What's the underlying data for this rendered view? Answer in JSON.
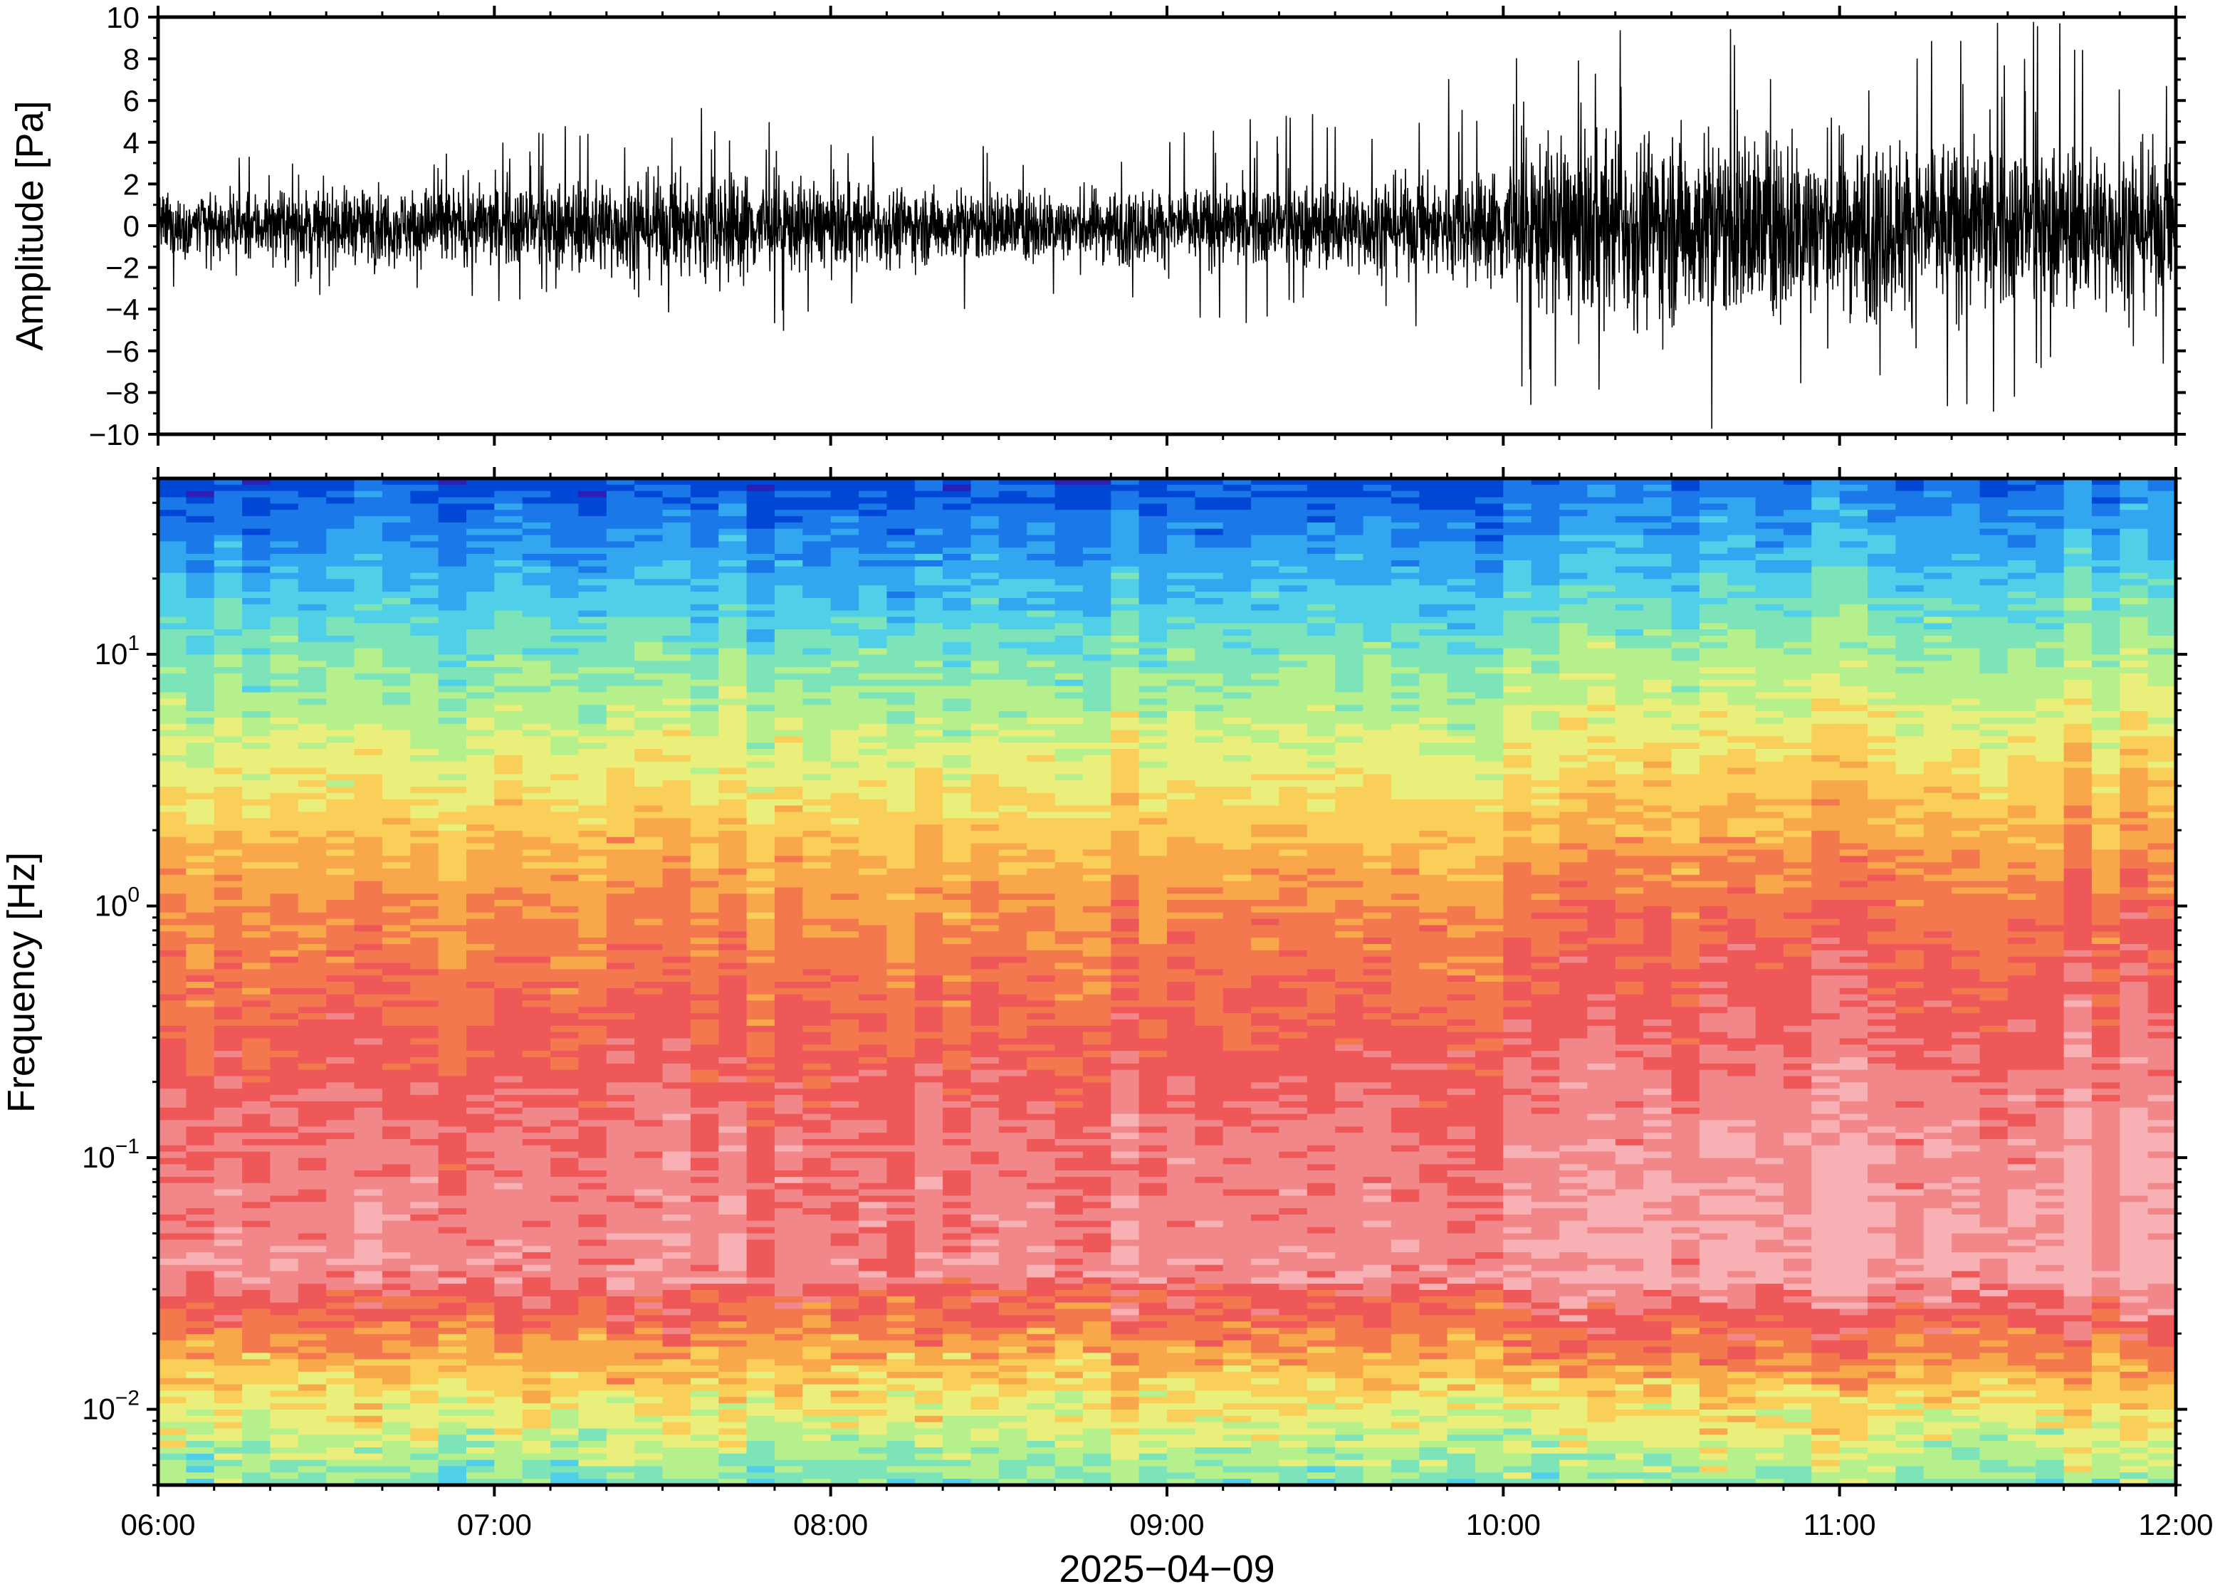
{
  "chart_data": [
    {
      "type": "line",
      "panel": "waveform",
      "ylabel": "Amplitude [Pa]",
      "ylim": [
        -10,
        10
      ],
      "yticks": [
        -10,
        -8,
        -6,
        -4,
        -2,
        0,
        2,
        4,
        6,
        8,
        10
      ],
      "ytick_labels": [
        "−10",
        "−8",
        "−6",
        "−4",
        "−2",
        "0",
        "2",
        "4",
        "6",
        "8",
        "10"
      ],
      "x_range": [
        "06:00",
        "12:00"
      ],
      "envelope": {
        "x_hours": [
          6.0,
          6.5,
          7.0,
          7.5,
          7.67,
          8.0,
          8.5,
          9.0,
          9.5,
          9.83,
          9.99,
          10.0,
          10.5,
          11.0,
          11.5,
          12.0
        ],
        "typical": [
          1.2,
          1.4,
          1.6,
          2.0,
          2.2,
          1.6,
          1.4,
          1.5,
          1.7,
          2.0,
          2.2,
          3.2,
          3.8,
          3.6,
          3.3,
          3.0
        ],
        "peak": [
          3.2,
          3.5,
          4.0,
          6.0,
          6.0,
          4.5,
          4.0,
          5.0,
          5.5,
          7.5,
          7.0,
          8.5,
          10.0,
          10.0,
          10.0,
          9.5
        ]
      },
      "grid": false,
      "color": "#000000"
    },
    {
      "type": "heatmap",
      "panel": "spectrogram",
      "xlabel": "2025−04−09",
      "ylabel": "Frequency [Hz]",
      "yscale": "log",
      "ylim": [
        0.005,
        50
      ],
      "yticks": [
        0.01,
        0.1,
        1,
        10
      ],
      "ytick_labels": [
        {
          "base": "10",
          "exp": "−2"
        },
        {
          "base": "10",
          "exp": "−1"
        },
        {
          "base": "10",
          "exp": "0"
        },
        {
          "base": "10",
          "exp": "1"
        }
      ],
      "xticks": [
        "06:00",
        "07:00",
        "08:00",
        "09:00",
        "10:00",
        "11:00",
        "12:00"
      ],
      "xlim_hours": [
        6,
        12
      ],
      "colormap": [
        "#2b1fb8",
        "#0047d6",
        "#1a78e8",
        "#33a6f0",
        "#4fd0e8",
        "#7de3b8",
        "#b6f08c",
        "#e9ef7a",
        "#f9cf5a",
        "#f8a84a",
        "#f4784e",
        "#ef5858",
        "#f2878a",
        "#f7b0b3"
      ],
      "grid": false
    }
  ]
}
